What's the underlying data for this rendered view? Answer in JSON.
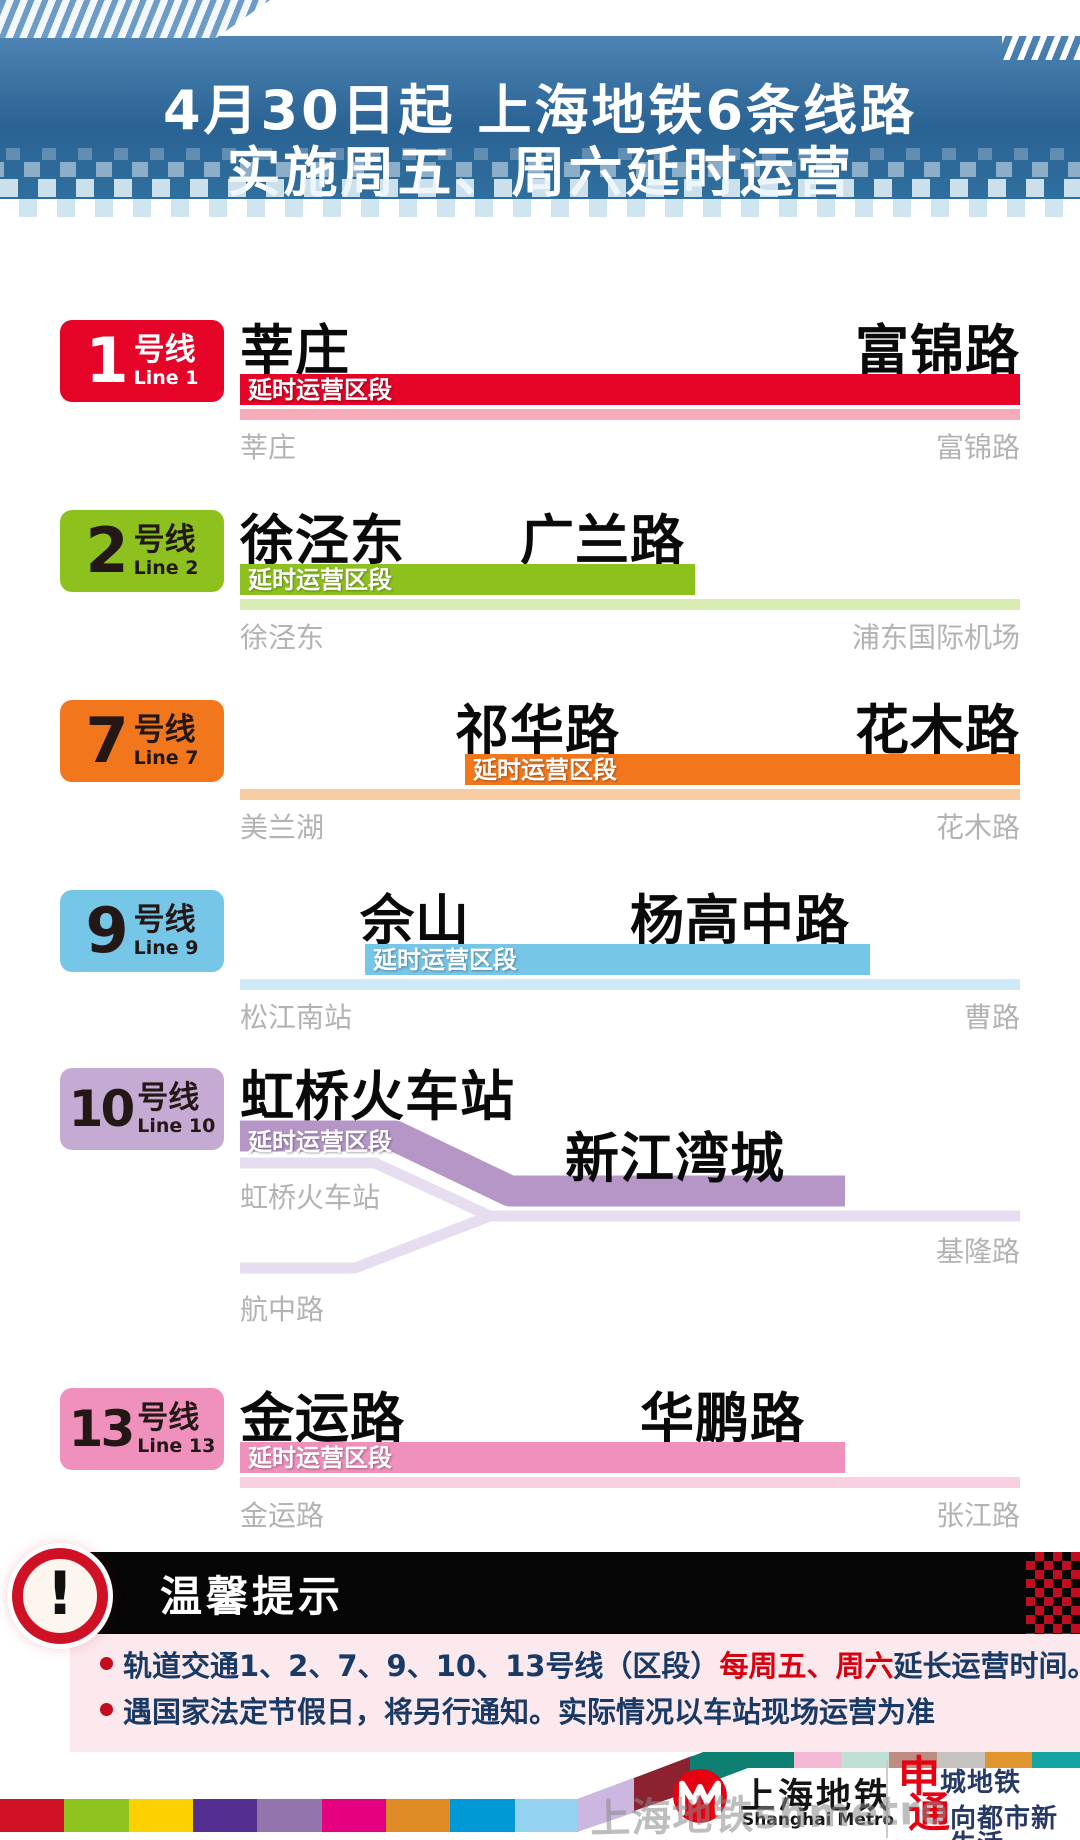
{
  "header": {
    "title_line1": "4月30日起  上海地铁6条线路",
    "title_line2": "实施周五、周六延时运营"
  },
  "lines": [
    {
      "number": "1",
      "suffix": "号线",
      "line_en": "Line 1",
      "badge_color": "#e50328",
      "color": "#e50328",
      "light": "#f5acb8",
      "badge_text": "#ffffff",
      "segment_label": "延时运营区段",
      "left_station": "莘庄",
      "right_station": "富锦路",
      "terminal_left": "莘庄",
      "terminal_right": "富锦路"
    },
    {
      "number": "2",
      "suffix": "号线",
      "line_en": "Line 2",
      "badge_color": "#8dc21e",
      "color": "#8dc21e",
      "light": "#d8ecb4",
      "badge_text": "#231815",
      "segment_label": "延时运营区段",
      "left_station": "徐泾东",
      "right_station": "广兰路",
      "terminal_left": "徐泾东",
      "terminal_right": "浦东国际机场"
    },
    {
      "number": "7",
      "suffix": "号线",
      "line_en": "Line 7",
      "badge_color": "#f2771c",
      "color": "#f2771c",
      "light": "#f8cda3",
      "badge_text": "#231815",
      "segment_label": "延时运营区段",
      "left_station": "祁华路",
      "right_station": "花木路",
      "terminal_left": "美兰湖",
      "terminal_right": "花木路"
    },
    {
      "number": "9",
      "suffix": "号线",
      "line_en": "Line 9",
      "badge_color": "#76c6e8",
      "color": "#76c6e8",
      "light": "#cdeaf8",
      "badge_text": "#231815",
      "segment_label": "延时运营区段",
      "left_station": "佘山",
      "right_station": "杨高中路",
      "terminal_left": "松江南站",
      "terminal_right": "曹路"
    },
    {
      "number": "10",
      "suffix": "号线",
      "line_en": "Line 10",
      "badge_color": "#c5abd3",
      "color": "#b596c7",
      "light": "#e7ddf1",
      "badge_text": "#231815",
      "segment_label": "延时运营区段",
      "left_station": "虹桥火车站",
      "right_station": "新江湾城",
      "terminal_left": "虹桥火车站",
      "terminal_right": "基隆路",
      "terminal_branch": "航中路"
    },
    {
      "number": "13",
      "suffix": "号线",
      "line_en": "Line 13",
      "badge_color": "#f090bd",
      "color": "#f090bd",
      "light": "#f9d0e2",
      "badge_text": "#231815",
      "segment_label": "延时运营区段",
      "left_station": "金运路",
      "right_station": "华鹏路",
      "terminal_left": "金运路",
      "terminal_right": "张江路"
    }
  ],
  "notice": {
    "title": "温馨提示",
    "bullet1_pre": "轨道交通1、2、7、9、10、13号线（区段）",
    "bullet1_em": "每周五、周六",
    "bullet1_post": "延长运营时间。",
    "bullet2": "遇国家法定节假日，将另行通知。实际情况以车站现场运营为准",
    "em_color": "#d7000f",
    "text_color": "#1a3a66",
    "accent_color": "#c20d20"
  },
  "footer": {
    "brand_cn": "上海地铁",
    "brand_en": "Shanghai Metro",
    "slogan1_big": "申",
    "slogan1_rest": "城地铁",
    "slogan2_big": "通",
    "slogan2_rest": "向都市新生活",
    "watermark": "上海地铁shmetro",
    "logo_color": "#e60012",
    "bottom_segments": [
      "#cf1225",
      "#8fc31f",
      "#fdd100",
      "#53308f",
      "#9175ac",
      "#e4007f",
      "#e08c26",
      "#0099d8",
      "#93d3f1"
    ],
    "curve_segments": [
      "#cbb7e0",
      "#8c2230",
      "#0d7f73"
    ],
    "top_segments": [
      "#0d7f73",
      "#f4b9d5",
      "#c0e0d5",
      "#bd8d82",
      "#c7c3c0",
      "#e0962e",
      "#14a3a3"
    ]
  }
}
